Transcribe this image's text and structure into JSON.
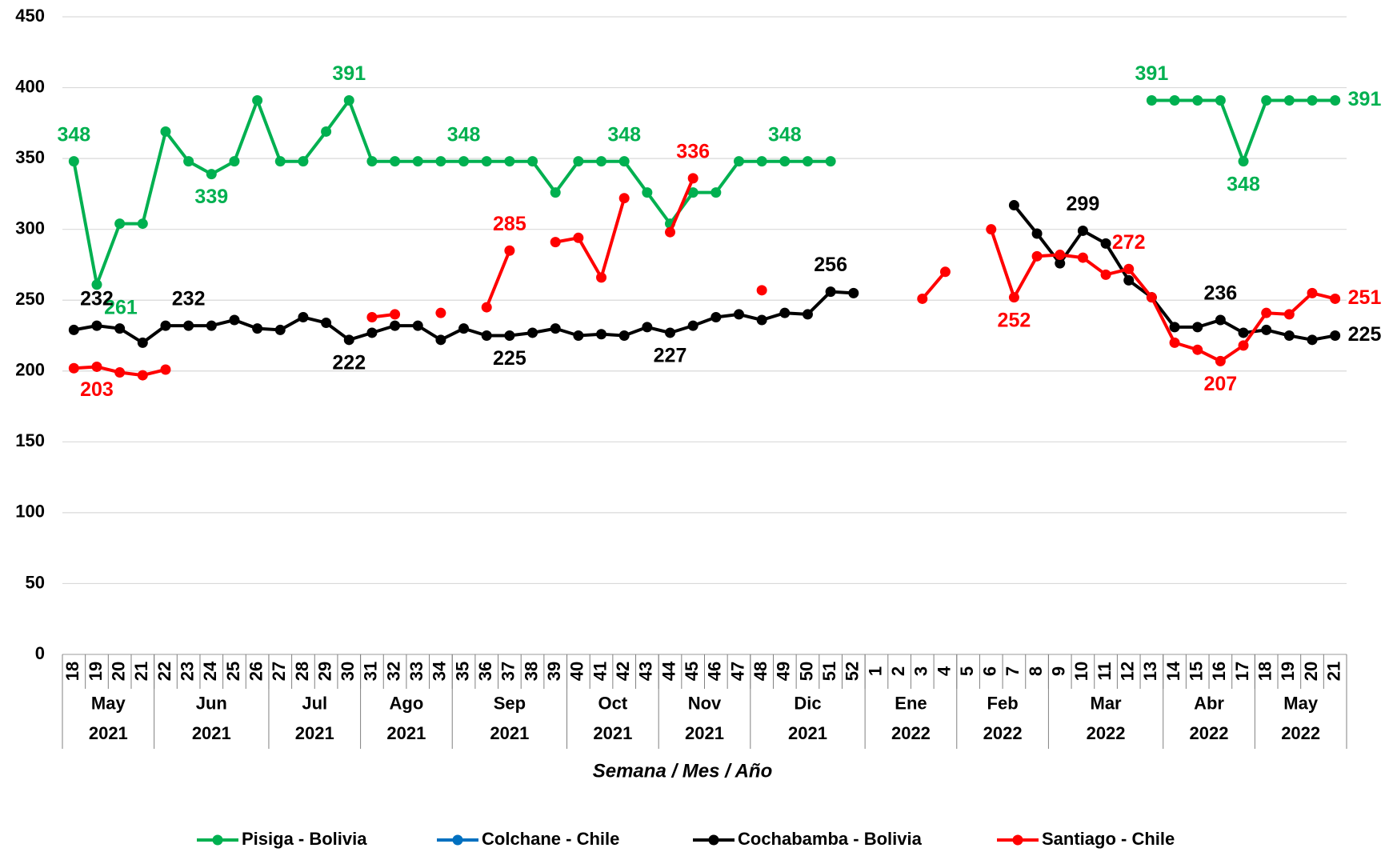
{
  "chart_data": {
    "type": "line",
    "x_title": "Semana / Mes / Año",
    "groups": [
      {
        "month": "May",
        "year": "2021",
        "weeks": [
          "18",
          "19",
          "20",
          "21"
        ]
      },
      {
        "month": "Jun",
        "year": "2021",
        "weeks": [
          "22",
          "23",
          "24",
          "25",
          "26"
        ]
      },
      {
        "month": "Jul",
        "year": "2021",
        "weeks": [
          "27",
          "28",
          "29",
          "30"
        ]
      },
      {
        "month": "Ago",
        "year": "2021",
        "weeks": [
          "31",
          "32",
          "33",
          "34"
        ]
      },
      {
        "month": "Sep",
        "year": "2021",
        "weeks": [
          "35",
          "36",
          "37",
          "38",
          "39"
        ]
      },
      {
        "month": "Oct",
        "year": "2021",
        "weeks": [
          "40",
          "41",
          "42",
          "43"
        ]
      },
      {
        "month": "Nov",
        "year": "2021",
        "weeks": [
          "44",
          "45",
          "46",
          "47"
        ]
      },
      {
        "month": "Dic",
        "year": "2021",
        "weeks": [
          "48",
          "49",
          "50",
          "51",
          "52"
        ]
      },
      {
        "month": "Ene",
        "year": "2022",
        "weeks": [
          "1",
          "2",
          "3",
          "4"
        ]
      },
      {
        "month": "Feb",
        "year": "2022",
        "weeks": [
          "5",
          "6",
          "7",
          "8"
        ]
      },
      {
        "month": "Mar",
        "year": "2022",
        "weeks": [
          "9",
          "10",
          "11",
          "12",
          "13"
        ]
      },
      {
        "month": "Abr",
        "year": "2022",
        "weeks": [
          "14",
          "15",
          "16",
          "17"
        ]
      },
      {
        "month": "May",
        "year": "2022",
        "weeks": [
          "18",
          "19",
          "20",
          "21"
        ]
      }
    ],
    "ylim": [
      0,
      450
    ],
    "yticks": [
      0,
      50,
      100,
      150,
      200,
      250,
      300,
      350,
      400,
      450
    ],
    "grid": true,
    "legend": "bottom",
    "series": [
      {
        "name": "Pisiga - Bolivia",
        "color": "#00b050",
        "values": [
          348,
          261,
          304,
          304,
          369,
          348,
          339,
          348,
          391,
          348,
          348,
          369,
          391,
          348,
          348,
          348,
          348,
          348,
          348,
          348,
          348,
          326,
          348,
          348,
          348,
          326,
          304,
          326,
          326,
          348,
          348,
          348,
          348,
          348,
          null,
          null,
          null,
          null,
          null,
          null,
          null,
          null,
          null,
          null,
          null,
          null,
          null,
          391,
          391,
          391,
          391,
          348,
          391,
          391,
          391,
          391
        ],
        "value_labels": [
          "348",
          "261",
          null,
          null,
          null,
          null,
          "339",
          null,
          null,
          null,
          null,
          null,
          "391",
          null,
          null,
          null,
          null,
          "348",
          null,
          null,
          null,
          null,
          null,
          null,
          "348",
          null,
          null,
          null,
          null,
          null,
          null,
          "348",
          null,
          null,
          null,
          null,
          null,
          null,
          null,
          null,
          null,
          null,
          null,
          null,
          null,
          null,
          null,
          "391",
          null,
          null,
          null,
          "348",
          null,
          null,
          null,
          "391"
        ]
      },
      {
        "name": "Colchane - Chile",
        "color": "#0070c0",
        "values": [
          null,
          null,
          null,
          null,
          null,
          null,
          null,
          null,
          null,
          null,
          null,
          null,
          null,
          null,
          null,
          null,
          null,
          null,
          null,
          null,
          null,
          null,
          null,
          null,
          null,
          null,
          null,
          null,
          null,
          null,
          null,
          null,
          null,
          null,
          null,
          null,
          null,
          null,
          null,
          null,
          null,
          null,
          null,
          null,
          null,
          null,
          null,
          null,
          null,
          null,
          null,
          null,
          null,
          null,
          null,
          null
        ]
      },
      {
        "name": "Cochabamba - Bolivia",
        "color": "#000000",
        "values": [
          229,
          232,
          230,
          220,
          232,
          232,
          232,
          236,
          230,
          229,
          238,
          234,
          222,
          227,
          232,
          232,
          222,
          230,
          225,
          225,
          227,
          230,
          225,
          226,
          225,
          231,
          227,
          232,
          238,
          240,
          236,
          241,
          240,
          256,
          255,
          null,
          null,
          null,
          null,
          null,
          null,
          317,
          297,
          276,
          299,
          290,
          264,
          252,
          231,
          231,
          236,
          227,
          229,
          225,
          222,
          225
        ],
        "value_labels": [
          null,
          "232",
          null,
          null,
          null,
          "232",
          null,
          null,
          null,
          null,
          null,
          null,
          "222",
          null,
          null,
          null,
          null,
          null,
          null,
          "225",
          null,
          null,
          null,
          null,
          null,
          null,
          "227",
          null,
          null,
          null,
          null,
          null,
          null,
          "256",
          null,
          null,
          null,
          null,
          null,
          null,
          null,
          null,
          null,
          null,
          "299",
          null,
          null,
          null,
          null,
          null,
          "236",
          null,
          null,
          null,
          null,
          "225"
        ]
      },
      {
        "name": "Santiago - Chile",
        "color": "#ff0000",
        "values": [
          202,
          203,
          199,
          197,
          201,
          null,
          null,
          null,
          null,
          null,
          null,
          null,
          null,
          238,
          240,
          null,
          241,
          null,
          245,
          285,
          null,
          291,
          294,
          266,
          322,
          null,
          298,
          336,
          null,
          null,
          257,
          null,
          null,
          null,
          null,
          null,
          null,
          251,
          270,
          null,
          300,
          252,
          281,
          282,
          280,
          268,
          272,
          252,
          220,
          215,
          207,
          218,
          241,
          240,
          255,
          251
        ],
        "value_labels": [
          null,
          "203",
          null,
          null,
          null,
          null,
          null,
          null,
          null,
          null,
          null,
          null,
          null,
          null,
          null,
          null,
          null,
          null,
          null,
          "285",
          null,
          null,
          null,
          null,
          null,
          null,
          null,
          "336",
          null,
          null,
          null,
          null,
          null,
          null,
          null,
          null,
          null,
          null,
          null,
          null,
          null,
          "252",
          null,
          null,
          null,
          null,
          "272",
          null,
          null,
          null,
          "207",
          null,
          null,
          null,
          null,
          "251"
        ]
      }
    ]
  }
}
